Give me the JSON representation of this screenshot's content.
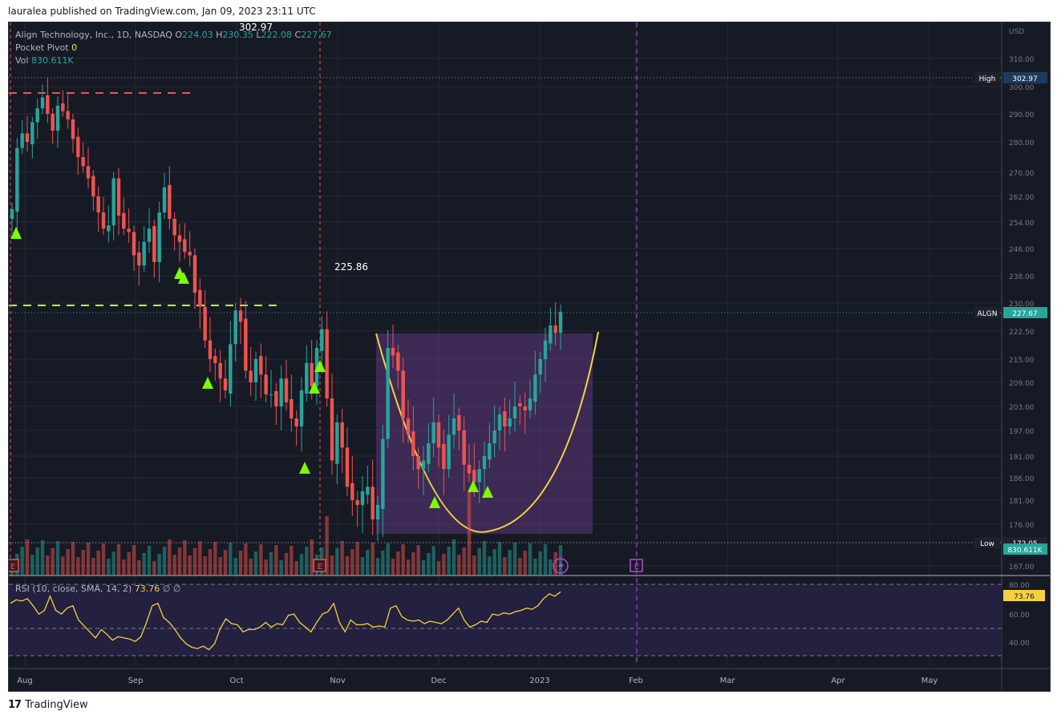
{
  "caption": "lauralea published on TradingView.com, Jan 09, 2023 23:11 UTC",
  "footer_brand": "TradingView",
  "footer_logo": "17",
  "legend": {
    "symbol": "Align Technology, Inc., 1D, NASDAQ",
    "o_label": "O",
    "o_value": "224.03",
    "h_label": "H",
    "h_value": "230.35",
    "l_label": "L",
    "l_value": "222.08",
    "c_label": "C",
    "c_value": "227.67",
    "pp_label": "Pocket Pivot",
    "pp_value": "0",
    "vol_label": "Vol",
    "vol_value": "830.611K"
  },
  "rsi_legend": {
    "label": "RSI (10, close, SMA, 14, 2)",
    "value": "73.76",
    "extra1": "∅",
    "extra2": "∅"
  },
  "annotations": {
    "high_text": "302.97",
    "mid_text": "225.86"
  },
  "axis_tags": {
    "currency": "USD",
    "high_label": "High",
    "high_value": "302.97",
    "sym_label": "ALGN",
    "sym_value": "227.67",
    "low_label": "Low",
    "low_value": "172.05",
    "vol_value": "830.611K",
    "rsi_value": "73.76"
  },
  "event_markers": [
    "E",
    "E",
    "E"
  ],
  "colors": {
    "up": "#26a69a",
    "down": "#ef5350",
    "cup": "#f5d142",
    "rsi": "#f5d142",
    "triangle": "#7cfc00",
    "purple": "#b44bd3"
  },
  "chart_data": {
    "type": "candlestick",
    "symbol": "ALGN",
    "x_ticks": [
      "Aug",
      "Sep",
      "Oct",
      "Nov",
      "Dec",
      "2023",
      "Feb",
      "Mar",
      "Apr",
      "May"
    ],
    "y_ticks": [
      "310.00",
      "300.00",
      "290.00",
      "280.00",
      "270.00",
      "262.00",
      "254.00",
      "246.00",
      "238.00",
      "230.00",
      "222.50",
      "215.00",
      "209.00",
      "203.00",
      "197.00",
      "191.00",
      "186.00",
      "181.00",
      "176.00",
      "172.05",
      "167.00"
    ],
    "rsi_y_ticks": [
      "80.00",
      "60.00",
      "40.00"
    ],
    "ylim": [
      167,
      316
    ],
    "close": [
      258,
      278,
      283,
      280,
      287,
      292,
      296,
      290,
      284,
      293,
      291,
      288,
      281,
      275,
      272,
      268,
      262,
      257,
      252,
      253,
      268,
      256,
      252,
      251,
      244,
      241,
      248,
      252,
      242,
      257,
      265,
      255,
      250,
      248,
      245,
      244,
      233,
      229,
      220,
      215,
      214,
      210,
      207,
      219,
      228,
      225,
      212,
      209,
      215,
      211,
      206,
      206,
      203,
      210,
      204,
      200,
      198,
      207,
      214,
      208,
      218,
      223,
      205,
      190,
      199,
      193,
      184,
      181,
      180,
      183,
      184,
      177,
      180,
      195,
      218,
      216,
      212,
      200,
      196,
      191,
      188,
      190,
      194,
      199,
      193,
      188,
      196,
      200,
      197,
      189,
      187,
      185,
      188,
      191,
      194,
      197,
      201,
      198,
      200,
      203,
      203,
      202,
      205,
      211,
      215,
      220,
      224,
      222,
      227.67
    ],
    "rsi": [
      64,
      67,
      66,
      68,
      62,
      55,
      58,
      70,
      58,
      55,
      60,
      62,
      50,
      45,
      40,
      35,
      42,
      38,
      33,
      36,
      35,
      34,
      32,
      36,
      48,
      62,
      64,
      52,
      48,
      42,
      35,
      30,
      27,
      26,
      28,
      25,
      30,
      43,
      51,
      47,
      46,
      40,
      42,
      42,
      44,
      48,
      44,
      47,
      46,
      54,
      55,
      48,
      44,
      40,
      48,
      55,
      57,
      64,
      48,
      40,
      50,
      46,
      46,
      47,
      44,
      45,
      44,
      60,
      62,
      53,
      50,
      49,
      50,
      47,
      49,
      48,
      47,
      50,
      55,
      60,
      50,
      44,
      46,
      49,
      48,
      55,
      54,
      56,
      55,
      57,
      58,
      60,
      59,
      62,
      68,
      72,
      70,
      73.76
    ],
    "high": 302.97,
    "low": 172.05,
    "annotation_level": 225.86
  }
}
